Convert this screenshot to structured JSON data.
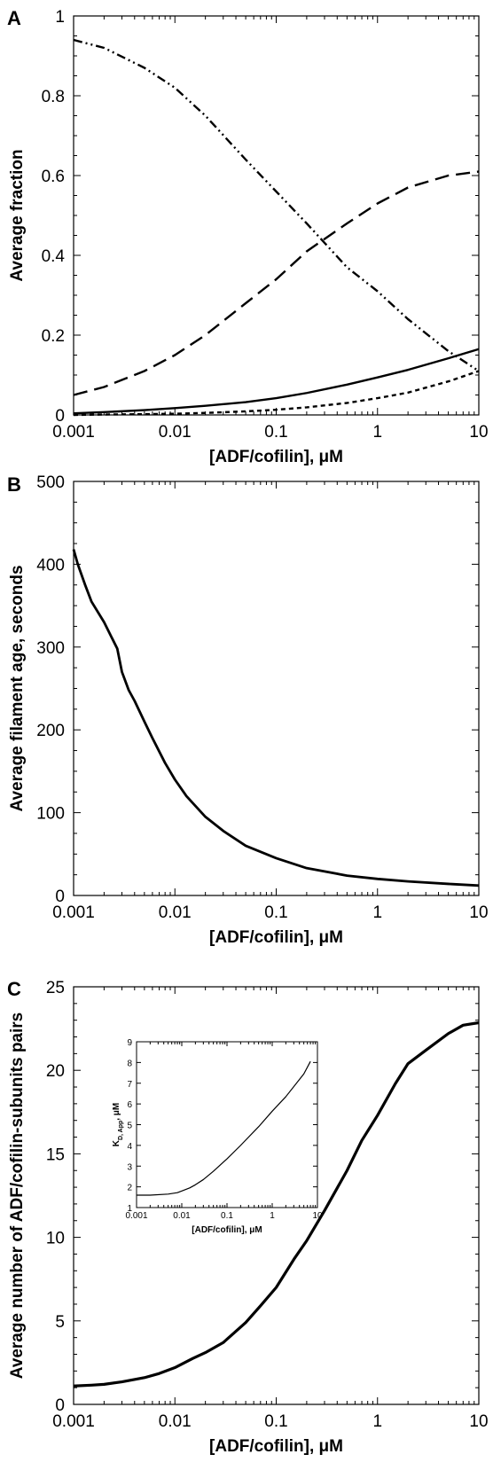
{
  "chart_data": [
    {
      "panel": "A",
      "type": "line",
      "xlabel": "[ADF/cofilin],  μM",
      "ylabel": "Average fraction",
      "xscale": "log",
      "xlim": [
        0.001,
        10
      ],
      "ylim": [
        0,
        1
      ],
      "x_ticks": [
        "0.001",
        "0.01",
        "0.1",
        "1",
        "10"
      ],
      "y_ticks": [
        "0",
        "0.2",
        "0.4",
        "0.6",
        "0.8",
        "1"
      ],
      "series": [
        {
          "style": "dash-dot-dot",
          "x": [
            0.001,
            0.002,
            0.005,
            0.01,
            0.02,
            0.05,
            0.1,
            0.2,
            0.5,
            1,
            2,
            5,
            10
          ],
          "values": [
            0.94,
            0.92,
            0.87,
            0.82,
            0.75,
            0.64,
            0.56,
            0.48,
            0.37,
            0.31,
            0.24,
            0.16,
            0.11
          ]
        },
        {
          "style": "long-dash",
          "x": [
            0.001,
            0.002,
            0.005,
            0.01,
            0.02,
            0.05,
            0.1,
            0.2,
            0.5,
            1,
            2,
            5,
            10
          ],
          "values": [
            0.05,
            0.07,
            0.11,
            0.15,
            0.2,
            0.28,
            0.34,
            0.41,
            0.48,
            0.53,
            0.57,
            0.6,
            0.61
          ]
        },
        {
          "style": "solid",
          "x": [
            0.001,
            0.002,
            0.005,
            0.01,
            0.02,
            0.05,
            0.1,
            0.2,
            0.5,
            1,
            2,
            5,
            10
          ],
          "values": [
            0.004,
            0.007,
            0.012,
            0.017,
            0.023,
            0.032,
            0.042,
            0.055,
            0.076,
            0.094,
            0.113,
            0.142,
            0.165
          ]
        },
        {
          "style": "short-dash",
          "x": [
            0.001,
            0.002,
            0.005,
            0.01,
            0.02,
            0.05,
            0.1,
            0.2,
            0.5,
            1,
            2,
            5,
            10
          ],
          "values": [
            0.0,
            0.001,
            0.002,
            0.003,
            0.005,
            0.009,
            0.013,
            0.019,
            0.03,
            0.042,
            0.056,
            0.084,
            0.11
          ]
        }
      ]
    },
    {
      "panel": "B",
      "type": "line",
      "xlabel": "[ADF/cofilin], μM",
      "ylabel": "Average filament age, seconds",
      "xscale": "log",
      "xlim": [
        0.001,
        10
      ],
      "ylim": [
        0,
        500
      ],
      "x_ticks": [
        "0.001",
        "0.01",
        "0.1",
        "1",
        "10"
      ],
      "y_ticks": [
        "0",
        "100",
        "200",
        "300",
        "400",
        "500"
      ],
      "series": [
        {
          "style": "solid",
          "x": [
            0.001,
            0.0011,
            0.0013,
            0.0015,
            0.002,
            0.0027,
            0.003,
            0.0035,
            0.004,
            0.005,
            0.006,
            0.008,
            0.01,
            0.013,
            0.02,
            0.03,
            0.05,
            0.1,
            0.2,
            0.5,
            1,
            2,
            5,
            10
          ],
          "values": [
            418,
            400,
            375,
            355,
            330,
            298,
            270,
            248,
            235,
            210,
            190,
            160,
            140,
            120,
            95,
            78,
            60,
            45,
            33,
            24,
            20,
            17,
            14,
            12
          ]
        }
      ]
    },
    {
      "panel": "C",
      "type": "line",
      "xlabel": "[ADF/cofilin], μM",
      "ylabel": "Average number of ADF/cofilin-subunits pairs",
      "xscale": "log",
      "xlim": [
        0.001,
        10
      ],
      "ylim": [
        0,
        25
      ],
      "x_ticks": [
        "0.001",
        "0.01",
        "0.1",
        "1",
        "10"
      ],
      "y_ticks": [
        "0",
        "5",
        "10",
        "15",
        "20",
        "25"
      ],
      "series": [
        {
          "style": "solid",
          "x": [
            0.001,
            0.0015,
            0.002,
            0.003,
            0.005,
            0.007,
            0.01,
            0.015,
            0.02,
            0.03,
            0.05,
            0.07,
            0.1,
            0.15,
            0.2,
            0.3,
            0.5,
            0.7,
            1,
            1.5,
            2,
            3,
            5,
            7,
            10
          ],
          "values": [
            1.1,
            1.15,
            1.2,
            1.35,
            1.6,
            1.85,
            2.2,
            2.75,
            3.1,
            3.7,
            4.9,
            5.9,
            7.0,
            8.7,
            9.8,
            11.6,
            14.0,
            15.8,
            17.3,
            19.2,
            20.4,
            21.2,
            22.2,
            22.7,
            22.85
          ]
        }
      ],
      "inset": {
        "type": "line",
        "xlabel": "[ADF/cofilin], μM",
        "ylabel": "K",
        "ylabel_sub": "D, App",
        "ylabel_unit": ", μM",
        "xscale": "log",
        "xlim": [
          0.001,
          10
        ],
        "ylim": [
          1,
          9
        ],
        "x_ticks": [
          "0.001",
          "0.01",
          "0.1",
          "1",
          "10"
        ],
        "y_ticks": [
          "1",
          "2",
          "3",
          "4",
          "5",
          "6",
          "7",
          "8",
          "9"
        ],
        "series": [
          {
            "style": "solid",
            "x": [
              0.001,
              0.002,
              0.005,
              0.008,
              0.01,
              0.015,
              0.02,
              0.03,
              0.05,
              0.1,
              0.2,
              0.5,
              1,
              2,
              5,
              7
            ],
            "values": [
              1.6,
              1.6,
              1.65,
              1.72,
              1.8,
              1.95,
              2.1,
              2.35,
              2.75,
              3.35,
              4.0,
              4.9,
              5.65,
              6.35,
              7.45,
              8.05
            ]
          }
        ]
      }
    }
  ]
}
